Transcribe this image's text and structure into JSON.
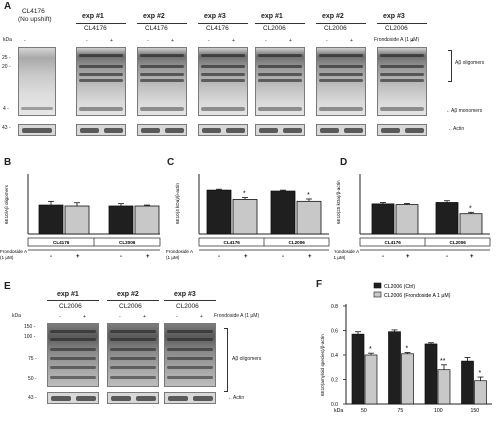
{
  "panelA": {
    "letter": "A",
    "header_first": [
      "CL4176",
      "(No upshift)"
    ],
    "exps": [
      {
        "exp": "exp #1",
        "strain": "CL4176"
      },
      {
        "exp": "exp #2",
        "strain": "CL4176"
      },
      {
        "exp": "exp #3",
        "strain": "CL4176"
      },
      {
        "exp": "exp #1",
        "strain": "CL2006"
      },
      {
        "exp": "exp #2",
        "strain": "CL2006"
      },
      {
        "exp": "exp #3",
        "strain": "CL2006"
      }
    ],
    "kda": "kDa",
    "sign_minus": "-",
    "sign_plus": "+",
    "treatment": "Frondoside A (1 μM)",
    "markers": [
      "25 -",
      "20 -",
      "4 -",
      "43 -"
    ],
    "oligomers": "Aβ oligomers",
    "monomers": "←Aβ monomers",
    "actin": "←Actin"
  },
  "panelB": {
    "letter": "B",
    "ylabel": "6E10/Aβ oligomers"
  },
  "panelC": {
    "letter": "C",
    "ylabel": "6E10(4 kDa)/β-actin"
  },
  "panelD": {
    "letter": "D",
    "ylabel": "6E10(25 kDa)/β-actin"
  },
  "bar_common": {
    "groups": [
      "CL4176",
      "CL2006"
    ],
    "row_label": [
      "Frondoside A",
      "(1 μM)"
    ],
    "signs": [
      "-",
      "+",
      "-",
      "+"
    ],
    "star": "*"
  },
  "panelE": {
    "letter": "E",
    "exps": [
      "exp #1",
      "exp #2",
      "exp #3"
    ],
    "strain": "CL2006",
    "kda": "kDa",
    "treatment": "Frondoside A (1 μM)",
    "markers": [
      "150 -",
      "100 -",
      "75 -",
      "50 -",
      "43 -"
    ],
    "oligomers": "Aβ oligomers",
    "actin": "←Actin"
  },
  "panelF": {
    "letter": "F",
    "ylabel": "6E10(amyloid species)/β-actin",
    "xlabel": "kDa",
    "legend": [
      "CL2006 (Ctrl)",
      "CL2006 (Frondoside A 1 μM)"
    ]
  },
  "colors": {
    "ctrl": "#1f1f1f",
    "treated": "#c8c8c8"
  },
  "chart_data": [
    {
      "type": "bar",
      "panel": "B",
      "categories": [
        "CL4176 -",
        "CL4176 +",
        "CL2006 -",
        "CL2006 +"
      ],
      "values": [
        0.31,
        0.3,
        0.3,
        0.3
      ],
      "errors": [
        0.04,
        0.035,
        0.025,
        0.01
      ],
      "ylim": [
        0,
        0.6
      ],
      "significant": [
        false,
        false,
        false,
        false
      ],
      "ylabel": "6E10/Aβ oligomers"
    },
    {
      "type": "bar",
      "panel": "C",
      "categories": [
        "CL4176 -",
        "CL4176 +",
        "CL2006 -",
        "CL2006 +"
      ],
      "values": [
        0.94,
        0.74,
        0.92,
        0.7
      ],
      "errors": [
        0.02,
        0.04,
        0.02,
        0.05
      ],
      "ylim": [
        0,
        1.2
      ],
      "significant": [
        false,
        true,
        false,
        true
      ],
      "ylabel": "6E10(4 kDa)/β-actin"
    },
    {
      "type": "bar",
      "panel": "D",
      "categories": [
        "CL4176 -",
        "CL4176 +",
        "CL2006 -",
        "CL2006 +"
      ],
      "values": [
        0.43,
        0.42,
        0.45,
        0.29
      ],
      "errors": [
        0.02,
        0.015,
        0.025,
        0.02
      ],
      "ylim": [
        0,
        0.8
      ],
      "significant": [
        false,
        false,
        false,
        true
      ],
      "ylabel": "6E10(25 kDa)/β-actin"
    },
    {
      "type": "bar",
      "panel": "F",
      "categories": [
        "50",
        "75",
        "100",
        "150"
      ],
      "series": [
        {
          "name": "CL2006 (Ctrl)",
          "values": [
            0.57,
            0.59,
            0.49,
            0.35
          ],
          "errors": [
            0.02,
            0.015,
            0.01,
            0.03
          ]
        },
        {
          "name": "CL2006 (Frondoside A 1 μM)",
          "values": [
            0.4,
            0.41,
            0.28,
            0.19
          ],
          "errors": [
            0.015,
            0.01,
            0.04,
            0.03
          ],
          "marks": [
            "*",
            "*",
            "**",
            "*"
          ]
        }
      ],
      "ylim": [
        0,
        0.8
      ],
      "yticks": [
        0,
        0.2,
        0.4,
        0.6,
        0.8
      ],
      "xlabel": "kDa",
      "ylabel": "6E10(amyloid species)/β-actin"
    }
  ]
}
